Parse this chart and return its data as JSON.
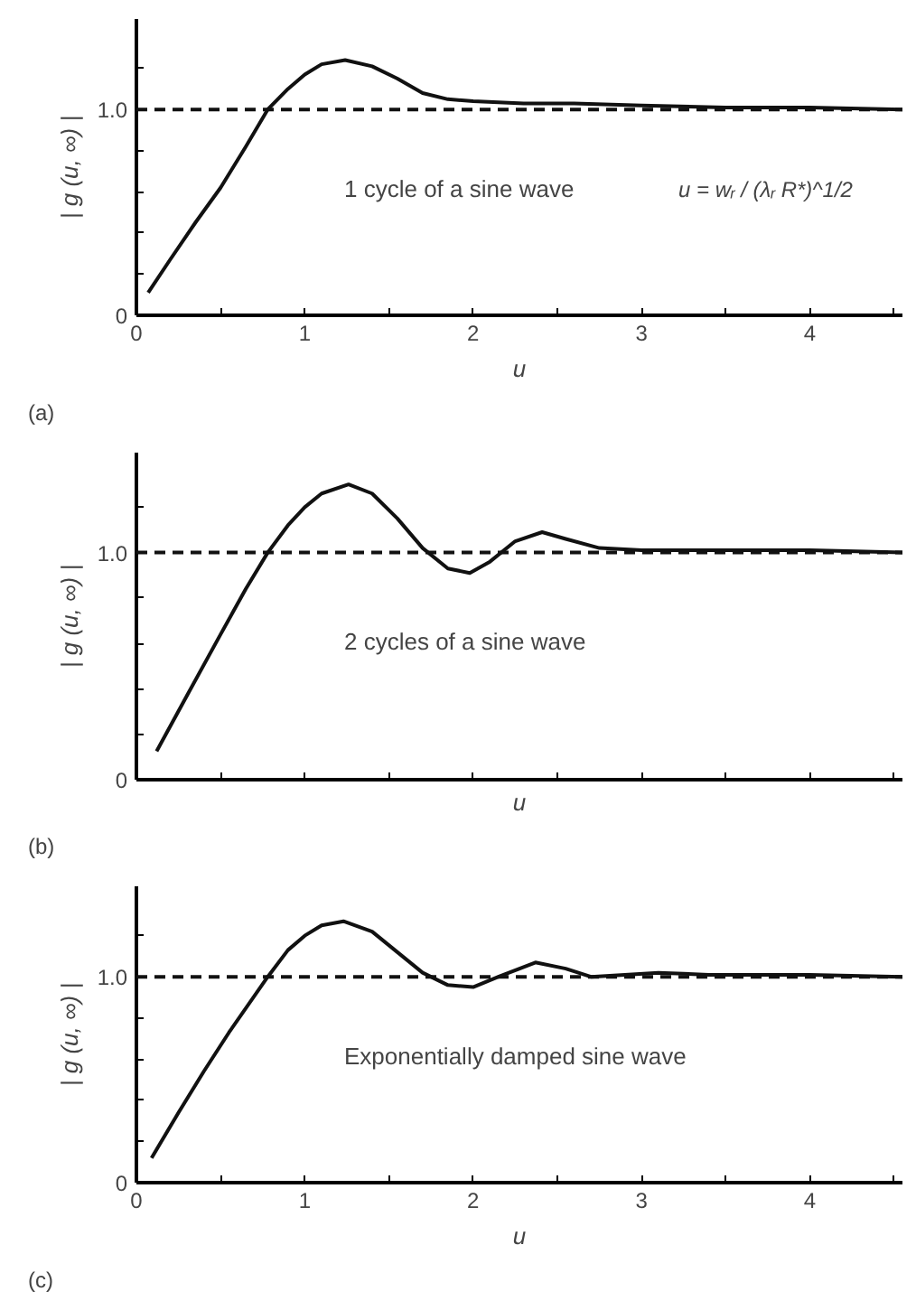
{
  "chart_data": [
    {
      "type": "line",
      "xlabel": "u",
      "ylabel": "| g (u, ∞) |",
      "annotations": [
        "(a)",
        "1 cycle of a sine wave",
        "u = wᵣ / (λᵣ R*)^1/2"
      ],
      "series": [
        {
          "color": "#111111",
          "x": [
            0.07,
            0.2,
            0.35,
            0.5,
            0.65,
            0.78,
            0.9,
            1.0,
            1.1,
            1.24,
            1.4,
            1.55,
            1.7,
            1.85,
            2.0,
            2.3,
            2.6,
            3.0,
            3.5,
            4.0,
            4.55
          ],
          "values": [
            0.11,
            0.27,
            0.45,
            0.62,
            0.82,
            1.0,
            1.1,
            1.17,
            1.22,
            1.24,
            1.21,
            1.15,
            1.08,
            1.05,
            1.04,
            1.03,
            1.03,
            1.02,
            1.01,
            1.01,
            1.0
          ]
        }
      ],
      "xlim": [
        0,
        4.55
      ],
      "ylim": [
        0,
        1.44
      ],
      "xticks": [
        0,
        {
          "value": 0.5,
          "label": null
        },
        1,
        {
          "value": 1.5,
          "label": null
        },
        2,
        {
          "value": 2.5,
          "label": null
        },
        3,
        {
          "value": 3.5,
          "label": null
        },
        4,
        {
          "value": 4.5,
          "label": null
        }
      ],
      "yticks": [
        0,
        {
          "value": 0.2,
          "label": null
        },
        {
          "value": 0.4,
          "label": null
        },
        {
          "value": 0.6,
          "label": null
        },
        {
          "value": 0.8,
          "label": null
        },
        {
          "value": 1.0,
          "label": "1.0"
        },
        {
          "value": 1.2,
          "label": null
        }
      ],
      "ref_lines": [
        {
          "axis": "y",
          "value": 1.0,
          "label": null,
          "line_style": "dashed",
          "color": "#111111"
        }
      ],
      "grid": false,
      "line_style": "solid"
    },
    {
      "type": "line",
      "xlabel": "u",
      "ylabel": "| g (u, ∞) |",
      "annotations": [
        "(b)",
        "2 cycles of a sine wave"
      ],
      "series": [
        {
          "color": "#111111",
          "x": [
            0.12,
            0.3,
            0.5,
            0.65,
            0.78,
            0.9,
            1.0,
            1.1,
            1.26,
            1.4,
            1.55,
            1.7,
            1.85,
            1.98,
            2.1,
            2.25,
            2.41,
            2.55,
            2.75,
            3.0,
            3.5,
            4.0,
            4.55
          ],
          "values": [
            0.125,
            0.37,
            0.64,
            0.84,
            1.0,
            1.12,
            1.2,
            1.26,
            1.3,
            1.26,
            1.15,
            1.02,
            0.93,
            0.91,
            0.96,
            1.05,
            1.09,
            1.06,
            1.02,
            1.01,
            1.01,
            1.01,
            1.0
          ]
        }
      ],
      "xlim": [
        0,
        4.55
      ],
      "ylim": [
        0,
        1.44
      ],
      "xticks": [
        0,
        {
          "value": 0.5,
          "label": null
        },
        1,
        {
          "value": 1.5,
          "label": null
        },
        2,
        {
          "value": 2.5,
          "label": null
        },
        3,
        {
          "value": 3.5,
          "label": null
        },
        4,
        {
          "value": 4.5,
          "label": null
        }
      ],
      "yticks": [
        0,
        {
          "value": 0.2,
          "label": null
        },
        {
          "value": 0.4,
          "label": null
        },
        {
          "value": 0.6,
          "label": null
        },
        {
          "value": 0.8,
          "label": null
        },
        {
          "value": 1.0,
          "label": "1.0"
        },
        {
          "value": 1.2,
          "label": null
        }
      ],
      "ref_lines": [
        {
          "axis": "y",
          "value": 1.0,
          "label": null,
          "line_style": "dashed",
          "color": "#111111"
        }
      ],
      "grid": false,
      "line_style": "solid",
      "tick_labels": "y"
    },
    {
      "type": "line",
      "xlabel": "u",
      "ylabel": "| g (u, ∞) |",
      "annotations": [
        "(c)",
        "Exponentially damped sine wave"
      ],
      "series": [
        {
          "color": "#111111",
          "x": [
            0.09,
            0.25,
            0.4,
            0.55,
            0.78,
            0.9,
            1.0,
            1.1,
            1.23,
            1.4,
            1.55,
            1.7,
            1.85,
            2.0,
            2.15,
            2.37,
            2.55,
            2.7,
            2.9,
            3.1,
            3.4,
            4.0,
            4.55
          ],
          "values": [
            0.12,
            0.34,
            0.54,
            0.73,
            1.0,
            1.13,
            1.2,
            1.25,
            1.27,
            1.22,
            1.12,
            1.02,
            0.96,
            0.95,
            1.0,
            1.07,
            1.04,
            1.0,
            1.01,
            1.02,
            1.01,
            1.01,
            1.0
          ]
        }
      ],
      "xlim": [
        0,
        4.55
      ],
      "ylim": [
        0,
        1.44
      ],
      "xticks": [
        0,
        {
          "value": 0.5,
          "label": null
        },
        1,
        {
          "value": 1.5,
          "label": null
        },
        2,
        {
          "value": 2.5,
          "label": null
        },
        3,
        {
          "value": 3.5,
          "label": null
        },
        4,
        {
          "value": 4.5,
          "label": null
        }
      ],
      "yticks": [
        0,
        {
          "value": 0.2,
          "label": null
        },
        {
          "value": 0.4,
          "label": null
        },
        {
          "value": 0.6,
          "label": null
        },
        {
          "value": 0.8,
          "label": null
        },
        {
          "value": 1.0,
          "label": "1.0"
        },
        {
          "value": 1.2,
          "label": null
        }
      ],
      "ref_lines": [
        {
          "axis": "y",
          "value": 1.0,
          "label": null,
          "line_style": "dashed",
          "color": "#111111"
        }
      ],
      "grid": false,
      "line_style": "solid"
    }
  ]
}
